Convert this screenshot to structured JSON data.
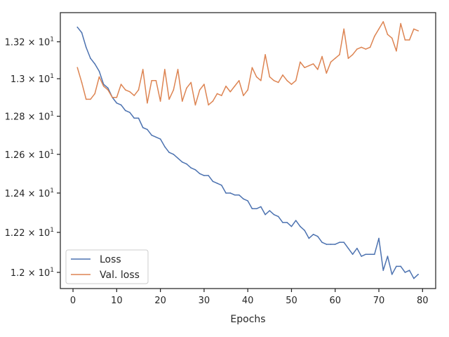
{
  "chart_data": {
    "type": "line",
    "title": "",
    "xlabel": "Epochs",
    "ylabel": "",
    "xlim": [
      -2.9,
      83.0
    ],
    "ylim": [
      11.92,
      13.36
    ],
    "yscale": "log",
    "grid": false,
    "legend_position": "lower-left",
    "x_ticks": [
      0,
      10,
      20,
      30,
      40,
      50,
      60,
      70,
      80
    ],
    "x_tick_labels": [
      "0",
      "10",
      "20",
      "30",
      "40",
      "50",
      "60",
      "70",
      "80"
    ],
    "y_ticks": [
      {
        "value": 12.0,
        "mantissa": "1.2",
        "exponent": "1"
      },
      {
        "value": 12.2,
        "mantissa": "1.22",
        "exponent": "1"
      },
      {
        "value": 12.4,
        "mantissa": "1.24",
        "exponent": "1"
      },
      {
        "value": 12.6,
        "mantissa": "1.26",
        "exponent": "1"
      },
      {
        "value": 12.8,
        "mantissa": "1.28",
        "exponent": "1"
      },
      {
        "value": 13.0,
        "mantissa": "1.3",
        "exponent": "1"
      },
      {
        "value": 13.2,
        "mantissa": "1.32",
        "exponent": "1"
      }
    ],
    "x": [
      1,
      2,
      3,
      4,
      5,
      6,
      7,
      8,
      9,
      10,
      11,
      12,
      13,
      14,
      15,
      16,
      17,
      18,
      19,
      20,
      21,
      22,
      23,
      24,
      25,
      26,
      27,
      28,
      29,
      30,
      31,
      32,
      33,
      34,
      35,
      36,
      37,
      38,
      39,
      40,
      41,
      42,
      43,
      44,
      45,
      46,
      47,
      48,
      49,
      50,
      51,
      52,
      53,
      54,
      55,
      56,
      57,
      58,
      59,
      60,
      61,
      62,
      63,
      64,
      65,
      66,
      67,
      68,
      69,
      70,
      71,
      72,
      73,
      74,
      75,
      76,
      77,
      78,
      79
    ],
    "series": [
      {
        "name": "Loss",
        "color": "#4c72b0",
        "values": [
          13.28,
          13.25,
          13.17,
          13.11,
          13.08,
          13.04,
          12.97,
          12.95,
          12.9,
          12.87,
          12.86,
          12.83,
          12.82,
          12.79,
          12.79,
          12.74,
          12.73,
          12.7,
          12.69,
          12.68,
          12.64,
          12.61,
          12.6,
          12.58,
          12.56,
          12.55,
          12.53,
          12.52,
          12.5,
          12.49,
          12.49,
          12.46,
          12.45,
          12.44,
          12.4,
          12.4,
          12.39,
          12.39,
          12.37,
          12.36,
          12.32,
          12.32,
          12.33,
          12.29,
          12.31,
          12.29,
          12.28,
          12.25,
          12.25,
          12.23,
          12.26,
          12.23,
          12.21,
          12.17,
          12.19,
          12.18,
          12.15,
          12.14,
          12.14,
          12.14,
          12.15,
          12.15,
          12.12,
          12.09,
          12.12,
          12.08,
          12.09,
          12.09,
          12.09,
          12.17,
          12.01,
          12.08,
          11.99,
          12.03,
          12.03,
          12.0,
          12.01,
          11.97,
          11.99
        ]
      },
      {
        "name": "Val. loss",
        "color": "#dd8452",
        "values": [
          13.06,
          12.98,
          12.89,
          12.89,
          12.92,
          13.01,
          12.96,
          12.94,
          12.9,
          12.9,
          12.97,
          12.94,
          12.93,
          12.91,
          12.94,
          13.05,
          12.87,
          12.99,
          12.99,
          12.88,
          13.05,
          12.89,
          12.94,
          13.05,
          12.88,
          12.95,
          12.98,
          12.86,
          12.94,
          12.97,
          12.86,
          12.88,
          12.92,
          12.91,
          12.96,
          12.93,
          12.96,
          12.99,
          12.91,
          12.94,
          13.06,
          13.01,
          12.99,
          13.13,
          13.01,
          12.99,
          12.98,
          13.02,
          12.99,
          12.97,
          12.99,
          13.09,
          13.06,
          13.07,
          13.08,
          13.05,
          13.12,
          13.03,
          13.09,
          13.11,
          13.13,
          13.27,
          13.11,
          13.13,
          13.16,
          13.17,
          13.16,
          13.17,
          13.23,
          13.27,
          13.31,
          13.24,
          13.22,
          13.15,
          13.3,
          13.21,
          13.21,
          13.27,
          13.26
        ]
      }
    ]
  }
}
